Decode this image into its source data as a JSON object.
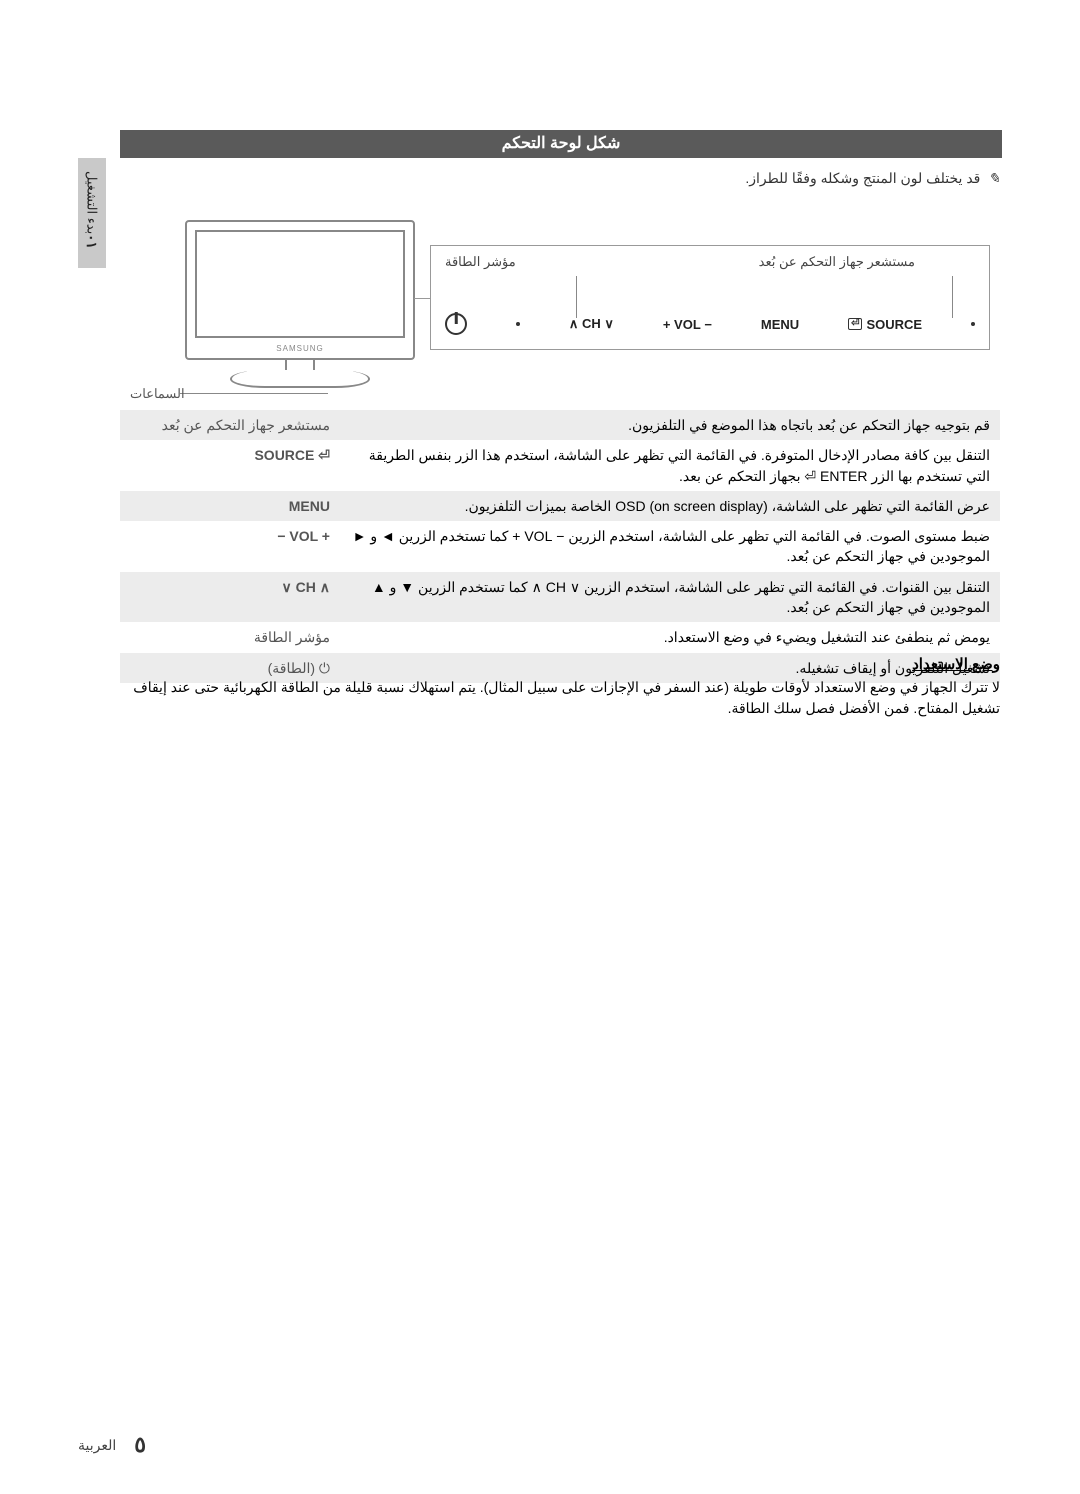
{
  "side_tab": {
    "num": "٠١",
    "label": "بدء التشغيل"
  },
  "header": "شكل لوحة التحكم",
  "note": {
    "icon": "✎",
    "text": "قد يختلف لون المنتج وشكله وفقًا للطراز."
  },
  "figure": {
    "sensor_label": "مستشعر جهاز التحكم عن بُعد",
    "power_label": "مؤشر الطاقة",
    "speakers_label": "السماعات",
    "tv_logo": "SAMSUNG",
    "buttons": {
      "source": "SOURCE",
      "menu": "MENU",
      "vol": "− VOL +",
      "ch": "∨ CH ∧"
    }
  },
  "rows": [
    {
      "key_ar": "مستشعر جهاز التحكم عن بُعد",
      "desc": "قم بتوجيه جهاز التحكم عن بُعد باتجاه هذا الموضع في التلفزيون."
    },
    {
      "key_ltr": "SOURCE ⏎",
      "desc": "التنقل بين كافة مصادر الإدخال المتوفرة. في القائمة التي تظهر على الشاشة، استخدم هذا الزر بنفس الطريقة التي تستخدم بها الزر ENTER ⏎ بجهاز التحكم عن بعد."
    },
    {
      "key_ltr": "MENU",
      "desc": "عرض القائمة التي تظهر على الشاشة، (OSD (on screen display الخاصة بميزات التلفزيون."
    },
    {
      "key_ltr": "− VOL +",
      "desc": "ضبط مستوى الصوت. في القائمة التي تظهر على الشاشة، استخدم الزرين − VOL + كما تستخدم الزرين ◄ و ► الموجودين في جهاز التحكم عن بُعد."
    },
    {
      "key_ltr": "∨ CH ∧",
      "desc": "التنقل بين القنوات. في القائمة التي تظهر على الشاشة، استخدم الزرين ∨ CH ∧ كما تستخدم الزرين ▼ و ▲ الموجودين في جهاز التحكم عن بُعد."
    },
    {
      "key_ar": "مؤشر الطاقة",
      "desc": "يومض ثم ينطفئ عند التشغيل ويضيء في وضع الاستعداد."
    },
    {
      "key_ar_prefix": "⏻",
      "key_ar": "(الطاقة)",
      "desc": "تشغيل التلفزيون أو إيقاف تشغيله."
    }
  ],
  "standby": {
    "title": "وضع الاستعداد",
    "text": "لا تترك الجهاز في وضع الاستعداد لأوقات طويلة (عند السفر في الإجازات على سبيل المثال). يتم استهلاك نسبة قليلة من الطاقة الكهربائية حتى عند إيقاف تشغيل المفتاح. فمن الأفضل فصل سلك الطاقة."
  },
  "footer": {
    "lang": "العربية",
    "page": "٥"
  }
}
